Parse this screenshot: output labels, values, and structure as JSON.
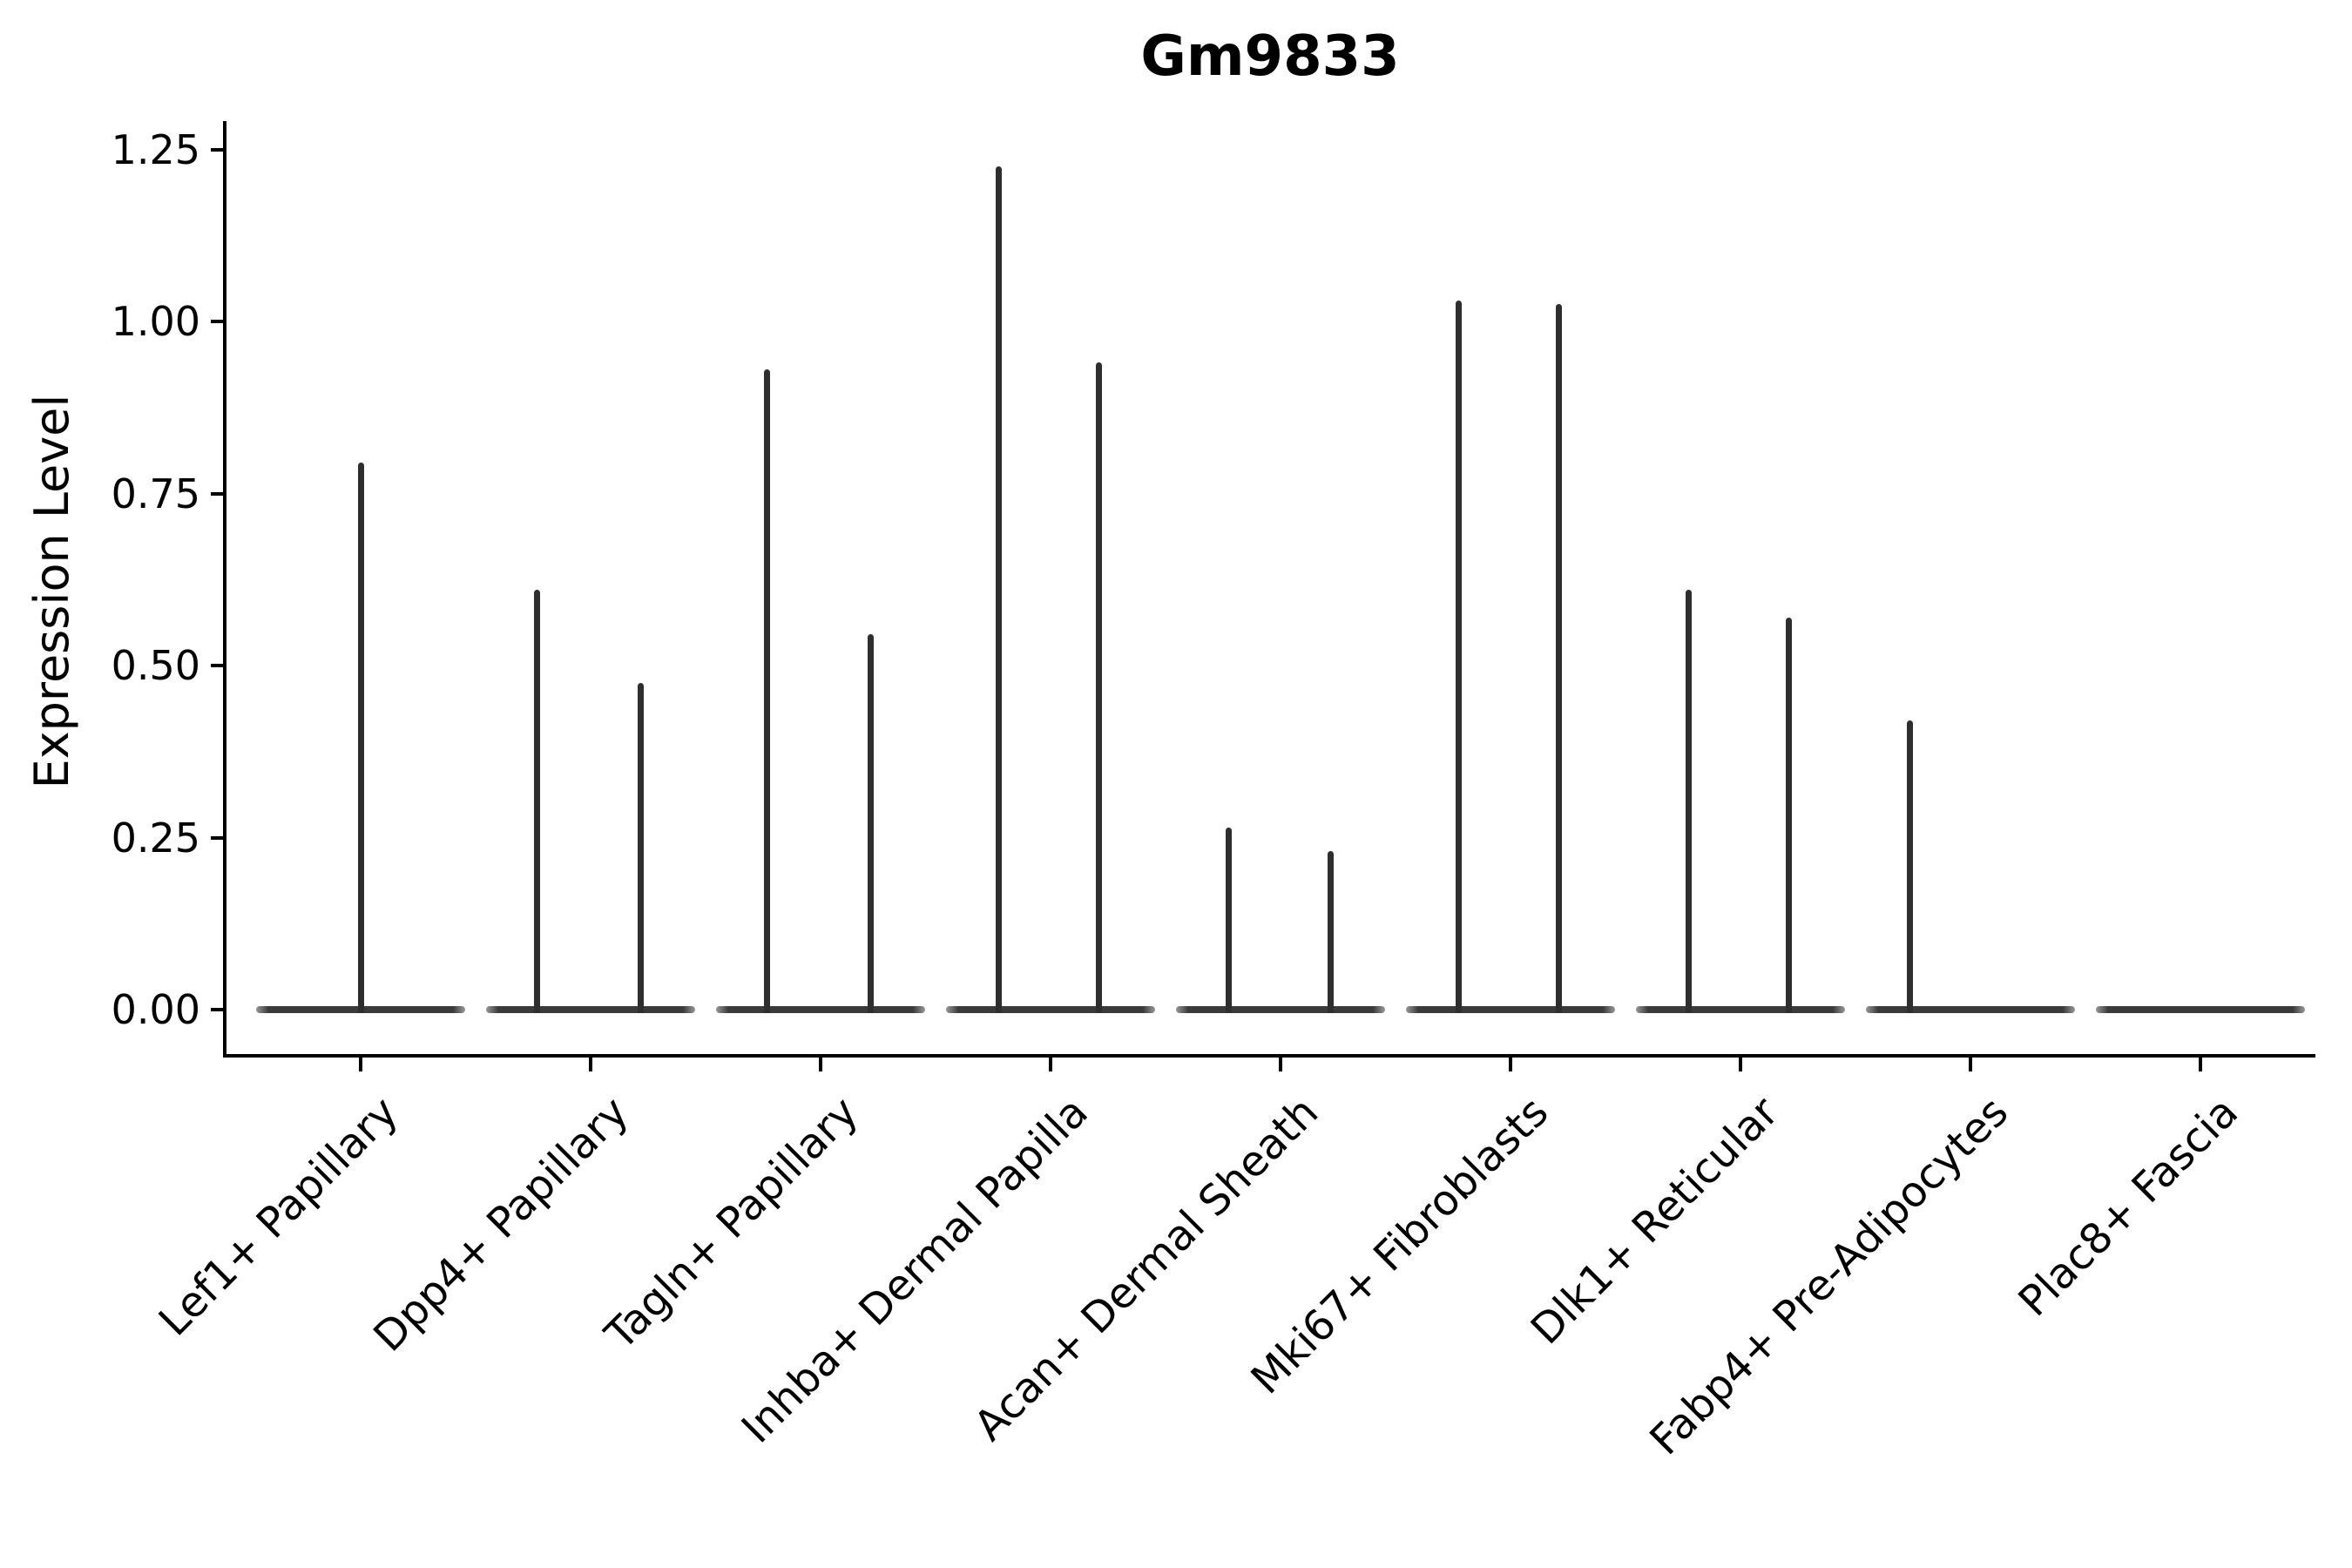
{
  "title": "Gm9833",
  "ylabel": "Expression Level",
  "chart_data": {
    "type": "violin",
    "title": "Gm9833",
    "xlabel": "",
    "ylabel": "Expression Level",
    "ylim": [
      -0.065,
      1.291
    ],
    "yticks": [
      0.0,
      0.25,
      0.5,
      0.75,
      1.0,
      1.25
    ],
    "ytick_labels": [
      "0.00",
      "0.25",
      "0.50",
      "0.75",
      "1.00",
      "1.25"
    ],
    "grid": false,
    "legend": "none",
    "violin_color": "#2e2e2e",
    "axis_color": "#000000",
    "note": "Single-cell expression violin plot; most cells at 0 so each violin collapses to a flat base at 0 with thin spikes reaching the maximum expressed values. dx = horizontal spike offset (px of 2700-wide canvas) from category center.",
    "categories": [
      "Lef1+ Papillary",
      "Dpp4+ Papillary",
      "Tagln+ Papillary",
      "Inhba+ Dermal Papilla",
      "Acan+ Dermal Sheath",
      "Mki67+ Fibroblasts",
      "Dlk1+ Reticular",
      "Fabp4+ Pre-Adipocytes",
      "Plac8+ Fascia"
    ],
    "violins": [
      {
        "category": "Lef1+ Papillary",
        "base_value": 0.0,
        "spikes": [
          {
            "dx": 0,
            "max": 0.795
          }
        ]
      },
      {
        "category": "Dpp4+ Papillary",
        "base_value": 0.0,
        "spikes": [
          {
            "dx": -62,
            "max": 0.61
          },
          {
            "dx": 57,
            "max": 0.475
          }
        ]
      },
      {
        "category": "Tagln+ Papillary",
        "base_value": 0.0,
        "spikes": [
          {
            "dx": -62,
            "max": 0.93
          },
          {
            "dx": 57,
            "max": 0.545
          }
        ]
      },
      {
        "category": "Inhba+ Dermal Papilla",
        "base_value": 0.0,
        "spikes": [
          {
            "dx": -60,
            "max": 1.225
          },
          {
            "dx": 55,
            "max": 0.94
          }
        ]
      },
      {
        "category": "Acan+ Dermal Sheath",
        "base_value": 0.0,
        "spikes": [
          {
            "dx": -60,
            "max": 0.265
          },
          {
            "dx": 57,
            "max": 0.23
          }
        ]
      },
      {
        "category": "Mki67+ Fibroblasts",
        "base_value": 0.0,
        "spikes": [
          {
            "dx": -60,
            "max": 1.03
          },
          {
            "dx": 55,
            "max": 1.025
          }
        ]
      },
      {
        "category": "Dlk1+ Reticular",
        "base_value": 0.0,
        "spikes": [
          {
            "dx": -60,
            "max": 0.61
          },
          {
            "dx": 55,
            "max": 0.57
          }
        ]
      },
      {
        "category": "Fabp4+ Pre-Adipocytes",
        "base_value": 0.0,
        "spikes": [
          {
            "dx": -70,
            "max": 0.42
          }
        ]
      },
      {
        "category": "Plac8+ Fascia",
        "base_value": 0.0,
        "spikes": []
      }
    ]
  }
}
